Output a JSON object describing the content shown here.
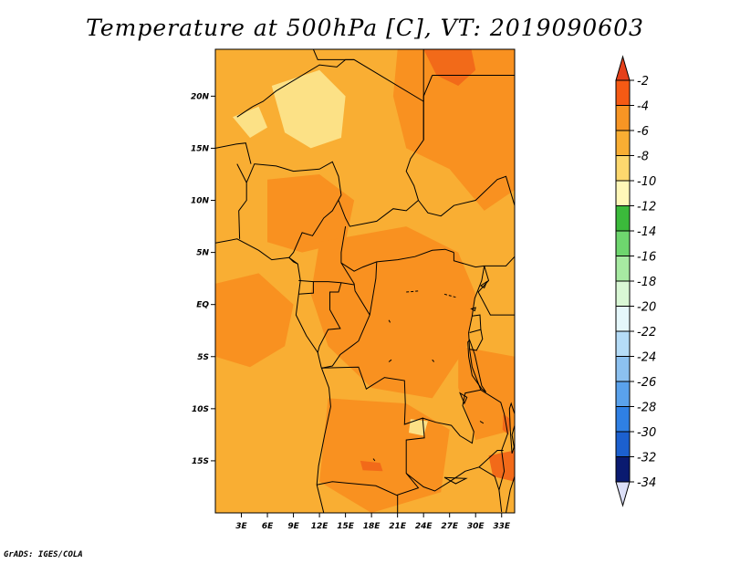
{
  "title": "Temperature at 500hPa [C], VT: 2019090603",
  "credit": "GrADS: IGES/COLA",
  "map": {
    "lon_range": [
      0,
      34.5
    ],
    "lat_range": [
      -20,
      24.5
    ],
    "lon_ticks": [
      {
        "value": 3,
        "label": "3E"
      },
      {
        "value": 6,
        "label": "6E"
      },
      {
        "value": 9,
        "label": "9E"
      },
      {
        "value": 12,
        "label": "12E"
      },
      {
        "value": 15,
        "label": "15E"
      },
      {
        "value": 18,
        "label": "18E"
      },
      {
        "value": 21,
        "label": "21E"
      },
      {
        "value": 24,
        "label": "24E"
      },
      {
        "value": 27,
        "label": "27E"
      },
      {
        "value": 30,
        "label": "30E"
      },
      {
        "value": 33,
        "label": "33E"
      }
    ],
    "lat_ticks": [
      {
        "value": 20,
        "label": "20N"
      },
      {
        "value": 15,
        "label": "15N"
      },
      {
        "value": 10,
        "label": "10N"
      },
      {
        "value": 5,
        "label": "5N"
      },
      {
        "value": 0,
        "label": "EQ"
      },
      {
        "value": -5,
        "label": "5S"
      },
      {
        "value": -10,
        "label": "10S"
      },
      {
        "value": -15,
        "label": "15S"
      }
    ],
    "dominant_fill": "#f9ae33",
    "warm_fill": "#f99120",
    "cool_fill": "#fce186",
    "hot_fill": "#f26a19",
    "border_color": "#000000"
  },
  "colorbar": {
    "levels": [
      {
        "label": "-2",
        "color": "#f55a14"
      },
      {
        "label": "-4",
        "color": "#f79524"
      },
      {
        "label": "-6",
        "color": "#f9ae33"
      },
      {
        "label": "-8",
        "color": "#fdd86e"
      },
      {
        "label": "-10",
        "color": "#fff7b8"
      },
      {
        "label": "-12",
        "color": "#3bba3b"
      },
      {
        "label": "-14",
        "color": "#6ed66e"
      },
      {
        "label": "-16",
        "color": "#a7eaa2"
      },
      {
        "label": "-18",
        "color": "#d9f7d5"
      },
      {
        "label": "-20",
        "color": "#e5f7fb"
      },
      {
        "label": "-22",
        "color": "#b5dcf7"
      },
      {
        "label": "-24",
        "color": "#8cc1f0"
      },
      {
        "label": "-26",
        "color": "#5aa2ec"
      },
      {
        "label": "-28",
        "color": "#2f80e4"
      },
      {
        "label": "-30",
        "color": "#1c60cf"
      },
      {
        "label": "-32",
        "color": "#0f3ea8"
      },
      {
        "label": "-34",
        "color": "#0a1a70"
      }
    ],
    "top_triangle_color": "#e5401a",
    "bottom_triangle_color": "#dcdff7"
  }
}
